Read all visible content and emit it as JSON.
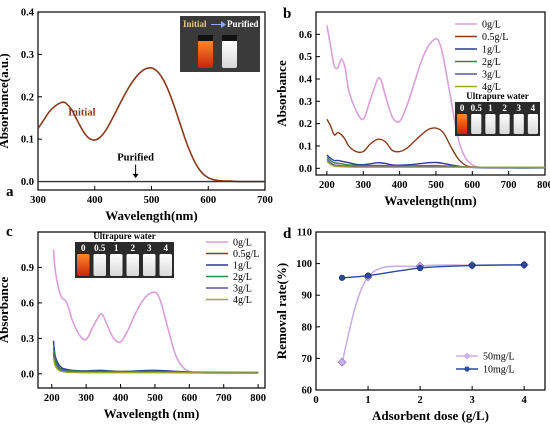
{
  "chart_data": [
    {
      "panel": "a",
      "type": "line",
      "xlabel": "Wavelength(nm)",
      "ylabel": "Absorbance(a.u.)",
      "xlim": [
        300,
        700
      ],
      "ylim": [
        -0.02,
        0.4
      ],
      "xticks": [
        "300",
        "400",
        "500",
        "600",
        "700"
      ],
      "yticks": [
        "0.0",
        "0.1",
        "0.2",
        "0.3",
        "0.4"
      ],
      "series": [
        {
          "name": "Initial",
          "color": "#8b3a1a",
          "x": [
            300,
            310,
            320,
            330,
            340,
            345,
            350,
            360,
            370,
            380,
            390,
            400,
            410,
            420,
            430,
            440,
            450,
            460,
            470,
            480,
            490,
            500,
            510,
            520,
            530,
            540,
            550,
            560,
            570,
            580,
            590,
            600,
            610,
            620,
            630,
            640,
            650,
            660,
            670,
            680,
            690,
            700
          ],
          "y": [
            0.125,
            0.145,
            0.165,
            0.178,
            0.186,
            0.187,
            0.184,
            0.168,
            0.142,
            0.118,
            0.102,
            0.098,
            0.105,
            0.122,
            0.146,
            0.172,
            0.198,
            0.222,
            0.242,
            0.257,
            0.266,
            0.268,
            0.26,
            0.242,
            0.214,
            0.178,
            0.138,
            0.098,
            0.064,
            0.037,
            0.019,
            0.009,
            0.004,
            0.002,
            0.001,
            0.001,
            0.0,
            0.0,
            0.0,
            0.0,
            0.0,
            0.0
          ]
        },
        {
          "name": "Purified",
          "color": "#333333",
          "x": [
            300,
            400,
            500,
            600,
            700
          ],
          "y": [
            0.0,
            0.0,
            0.0,
            0.0,
            0.0
          ]
        }
      ],
      "annotations": [
        "Initial",
        "Purified"
      ],
      "inset_labels": [
        "Initial",
        "Purified"
      ]
    },
    {
      "panel": "b",
      "type": "line",
      "xlabel": "Wavelength(nm)",
      "ylabel": "Absorbance",
      "xlim": [
        170,
        800
      ],
      "ylim": [
        -0.03,
        0.7
      ],
      "xticks": [
        "200",
        "300",
        "400",
        "500",
        "600",
        "700",
        "800"
      ],
      "yticks": [
        "0.0",
        "0.1",
        "0.2",
        "0.3",
        "0.4",
        "0.5",
        "0.6"
      ],
      "legend": "top-right",
      "inset_title": "Ultrapure water",
      "inset_labels": [
        "0",
        "0.5",
        "1",
        "2",
        "3",
        "4"
      ],
      "series": [
        {
          "name": "0g/L",
          "color": "#dd9ed8",
          "x": [
            200,
            210,
            220,
            230,
            240,
            250,
            260,
            280,
            300,
            320,
            340,
            350,
            360,
            380,
            400,
            420,
            440,
            460,
            480,
            500,
            510,
            520,
            540,
            560,
            580,
            600,
            620,
            650,
            700,
            750,
            800
          ],
          "y": [
            0.64,
            0.55,
            0.46,
            0.45,
            0.49,
            0.45,
            0.35,
            0.26,
            0.22,
            0.31,
            0.4,
            0.39,
            0.33,
            0.23,
            0.21,
            0.28,
            0.38,
            0.48,
            0.55,
            0.58,
            0.56,
            0.5,
            0.32,
            0.14,
            0.05,
            0.015,
            0.005,
            0.003,
            0.002,
            0.002,
            0.002
          ]
        },
        {
          "name": "0.5g/L",
          "color": "#8b3a1a",
          "x": [
            200,
            210,
            220,
            230,
            240,
            250,
            260,
            280,
            300,
            320,
            340,
            360,
            380,
            400,
            420,
            440,
            460,
            480,
            500,
            520,
            540,
            560,
            580,
            600,
            650,
            700,
            800
          ],
          "y": [
            0.22,
            0.19,
            0.15,
            0.16,
            0.15,
            0.13,
            0.1,
            0.075,
            0.075,
            0.11,
            0.13,
            0.12,
            0.08,
            0.075,
            0.09,
            0.12,
            0.15,
            0.175,
            0.18,
            0.16,
            0.1,
            0.045,
            0.015,
            0.006,
            0.004,
            0.003,
            0.002
          ]
        },
        {
          "name": "1g/L",
          "color": "#2b3a9e",
          "x": [
            200,
            210,
            220,
            230,
            240,
            260,
            280,
            300,
            320,
            340,
            360,
            380,
            400,
            440,
            480,
            500,
            520,
            560,
            600,
            700,
            800
          ],
          "y": [
            0.06,
            0.045,
            0.035,
            0.035,
            0.032,
            0.025,
            0.018,
            0.016,
            0.02,
            0.025,
            0.022,
            0.015,
            0.014,
            0.018,
            0.025,
            0.026,
            0.022,
            0.01,
            0.004,
            0.002,
            0.002
          ]
        },
        {
          "name": "2g/L",
          "color": "#2f8a4a",
          "x": [
            200,
            210,
            220,
            240,
            260,
            300,
            340,
            400,
            500,
            600,
            800
          ],
          "y": [
            0.05,
            0.035,
            0.025,
            0.02,
            0.015,
            0.012,
            0.013,
            0.01,
            0.012,
            0.005,
            0.003
          ]
        },
        {
          "name": "3g/L",
          "color": "#5b56a8",
          "x": [
            200,
            210,
            220,
            240,
            260,
            300,
            400,
            500,
            600,
            800
          ],
          "y": [
            0.04,
            0.025,
            0.015,
            0.011,
            0.009,
            0.008,
            0.007,
            0.007,
            0.005,
            0.004
          ]
        },
        {
          "name": "4g/L",
          "color": "#9aa82a",
          "x": [
            200,
            210,
            220,
            240,
            260,
            300,
            400,
            500,
            600,
            800
          ],
          "y": [
            0.03,
            0.018,
            0.01,
            0.007,
            0.006,
            0.005,
            0.005,
            0.005,
            0.005,
            0.005
          ]
        }
      ]
    },
    {
      "panel": "c",
      "type": "line",
      "xlabel": "Wavelength (nm)",
      "ylabel": "Absorbance",
      "xlim": [
        160,
        820
      ],
      "ylim": [
        -0.12,
        1.2
      ],
      "xticks": [
        "200",
        "300",
        "400",
        "500",
        "600",
        "700",
        "800"
      ],
      "yticks": [
        "0.0",
        "0.3",
        "0.6",
        "0.9"
      ],
      "legend": "top-right",
      "inset_title": "Ultrapure water",
      "inset_labels": [
        "0",
        "0.5",
        "1",
        "2",
        "3",
        "4"
      ],
      "series": [
        {
          "name": "0g/L",
          "color": "#dd9ed8",
          "x": [
            205,
            210,
            220,
            230,
            240,
            250,
            260,
            280,
            300,
            320,
            340,
            350,
            360,
            380,
            400,
            420,
            440,
            460,
            480,
            500,
            510,
            520,
            540,
            560,
            580,
            600,
            620,
            650,
            700,
            750,
            800
          ],
          "y": [
            1.05,
            0.88,
            0.72,
            0.64,
            0.62,
            0.55,
            0.45,
            0.33,
            0.29,
            0.4,
            0.5,
            0.49,
            0.42,
            0.3,
            0.27,
            0.36,
            0.49,
            0.6,
            0.67,
            0.69,
            0.66,
            0.58,
            0.36,
            0.16,
            0.06,
            0.02,
            0.01,
            0.006,
            0.005,
            0.005,
            0.005
          ]
        },
        {
          "name": "0.5g/L",
          "color": "#8b3a1a",
          "x": [
            205,
            210,
            220,
            230,
            240,
            260,
            300,
            400,
            500,
            600,
            800
          ],
          "y": [
            0.18,
            0.1,
            0.05,
            0.03,
            0.025,
            0.02,
            0.015,
            0.015,
            0.015,
            0.012,
            0.01
          ]
        },
        {
          "name": "1g/L",
          "color": "#2b3a9e",
          "x": [
            205,
            210,
            220,
            230,
            240,
            260,
            300,
            340,
            400,
            500,
            600,
            800
          ],
          "y": [
            0.28,
            0.15,
            0.08,
            0.05,
            0.04,
            0.03,
            0.025,
            0.03,
            0.02,
            0.03,
            0.015,
            0.01
          ]
        },
        {
          "name": "2g/L",
          "color": "#2f8a4a",
          "x": [
            205,
            210,
            220,
            230,
            240,
            260,
            300,
            400,
            500,
            600,
            800
          ],
          "y": [
            0.22,
            0.12,
            0.06,
            0.04,
            0.03,
            0.025,
            0.02,
            0.02,
            0.02,
            0.015,
            0.01
          ]
        },
        {
          "name": "3g/L",
          "color": "#5b56a8",
          "x": [
            205,
            210,
            220,
            230,
            240,
            260,
            300,
            400,
            500,
            600,
            800
          ],
          "y": [
            0.17,
            0.09,
            0.045,
            0.03,
            0.022,
            0.018,
            0.015,
            0.012,
            0.015,
            0.01,
            0.008
          ]
        },
        {
          "name": "4g/L",
          "color": "#9aa82a",
          "x": [
            205,
            210,
            220,
            230,
            240,
            260,
            300,
            400,
            500,
            600,
            800
          ],
          "y": [
            0.14,
            0.07,
            0.03,
            0.02,
            0.015,
            0.012,
            0.01,
            0.01,
            0.01,
            0.008,
            0.006
          ]
        }
      ]
    },
    {
      "panel": "d",
      "type": "line",
      "xlabel": "Adsorbent dose (g/L)",
      "ylabel": "Removal rate(%)",
      "xlim": [
        0,
        4.4
      ],
      "ylim": [
        60,
        110
      ],
      "xticks": [
        "0",
        "1",
        "2",
        "3",
        "4"
      ],
      "yticks": [
        "60",
        "70",
        "80",
        "90",
        "100",
        "110"
      ],
      "legend": "bottom-right",
      "series": [
        {
          "name": "50mg/L",
          "color": "#c9aee8",
          "marker": "diamond",
          "x": [
            0.5,
            1,
            2,
            3,
            4
          ],
          "y": [
            68.8,
            95.8,
            99.2,
            99.5,
            99.6
          ]
        },
        {
          "name": "10mg/L",
          "color": "#2c4a9e",
          "marker": "circle",
          "x": [
            0.5,
            1,
            2,
            3,
            4
          ],
          "y": [
            95.5,
            96.2,
            98.6,
            99.4,
            99.6
          ]
        }
      ]
    }
  ]
}
